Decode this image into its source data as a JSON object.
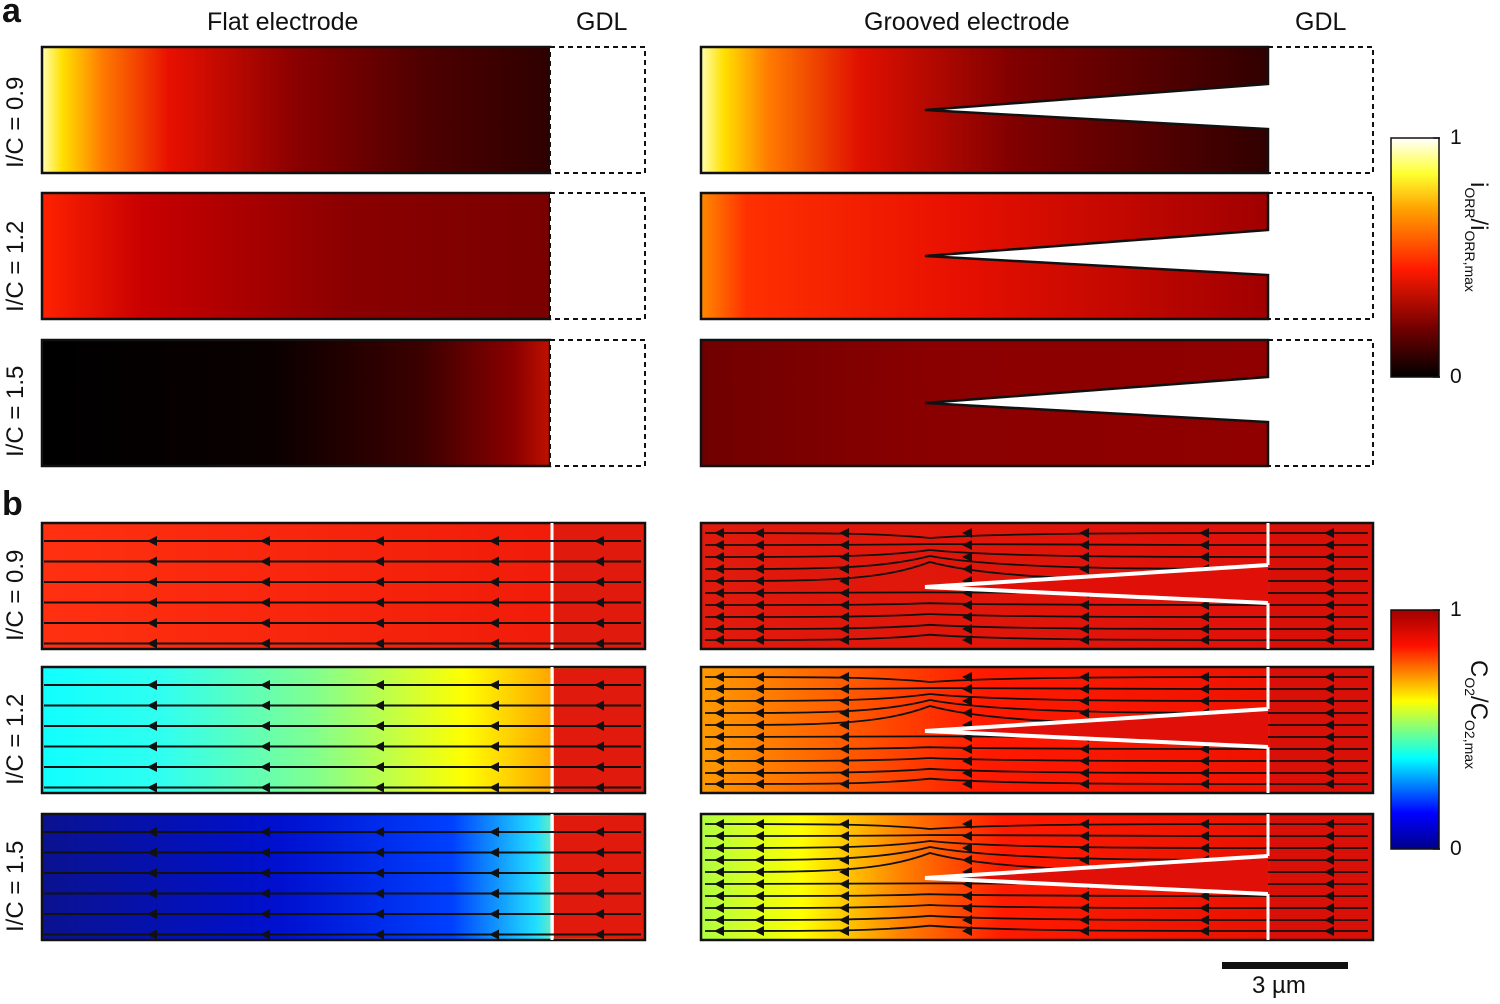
{
  "panels": {
    "a": "a",
    "b": "b"
  },
  "columns": {
    "flat": "Flat electrode",
    "grooved": "Grooved electrode",
    "gdl": "GDL"
  },
  "rows": [
    "I/C = 0.9",
    "I/C = 1.2",
    "I/C = 1.5"
  ],
  "colorbar_a": {
    "title_main": "i",
    "title_sub1": "ORR",
    "title_mid": "/i",
    "title_sub2": "ORR,max",
    "max_label": "1",
    "min_label": "0",
    "colormap": "hot",
    "stops": [
      "#000000",
      "#8b0000",
      "#ff2000",
      "#ff8c00",
      "#ffff00",
      "#ffffff"
    ]
  },
  "colorbar_b": {
    "title_main": "C",
    "title_sub1": "O2",
    "title_mid": "/C",
    "title_sub2": "O2,max",
    "max_label": "1",
    "min_label": "0",
    "colormap": "jet",
    "stops": [
      "#00008b",
      "#0000ff",
      "#00ffff",
      "#ffff00",
      "#ff0000",
      "#8b0000"
    ]
  },
  "scale_bar": {
    "label": "3 µm"
  },
  "colors": {
    "flow_lines": "#111111",
    "groove_edge_b": "#ffffff",
    "border": "#111111"
  }
}
